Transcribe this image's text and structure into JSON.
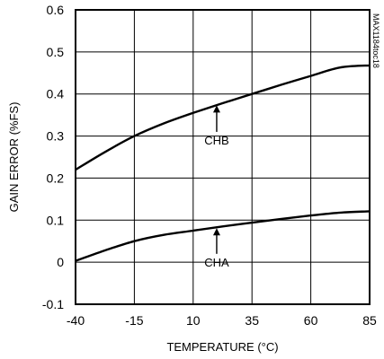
{
  "chart_data": {
    "type": "line",
    "xlabel": "TEMPERATURE (°C)",
    "ylabel": "GAIN ERROR (%FS)",
    "xlim": [
      -40,
      85
    ],
    "ylim": [
      -0.1,
      0.6
    ],
    "x_ticks": [
      -40,
      -15,
      10,
      35,
      60,
      85
    ],
    "x_tick_labels": [
      "-40",
      "-15",
      "10",
      "35",
      "60",
      "85"
    ],
    "y_ticks": [
      -0.1,
      0,
      0.1,
      0.2,
      0.3,
      0.4,
      0.5,
      0.6
    ],
    "y_tick_labels": [
      "-0.1",
      "0",
      "0.1",
      "0.2",
      "0.3",
      "0.4",
      "0.5",
      "0.6"
    ],
    "grid": true,
    "legend": "none",
    "series": [
      {
        "name": "CHB",
        "x": [
          -40,
          -27.5,
          -15,
          -2.5,
          10,
          22.5,
          35,
          47.5,
          60,
          72.5,
          85
        ],
        "y": [
          0.22,
          0.262,
          0.3,
          0.33,
          0.355,
          0.378,
          0.4,
          0.422,
          0.443,
          0.463,
          0.468
        ]
      },
      {
        "name": "CHA",
        "x": [
          -40,
          -27.5,
          -15,
          -2.5,
          10,
          22.5,
          35,
          47.5,
          60,
          72.5,
          85
        ],
        "y": [
          0.003,
          0.028,
          0.05,
          0.065,
          0.075,
          0.085,
          0.094,
          0.103,
          0.111,
          0.118,
          0.121
        ]
      }
    ],
    "annotations": [
      {
        "text": "CHB",
        "arrow_x": 20,
        "arrow_y": 0.375,
        "text_x": 20,
        "text_y": 0.28
      },
      {
        "text": "CHA",
        "arrow_x": 20,
        "arrow_y": 0.083,
        "text_x": 20,
        "text_y": -0.01
      }
    ],
    "side_code": "MAX1184toc18"
  }
}
